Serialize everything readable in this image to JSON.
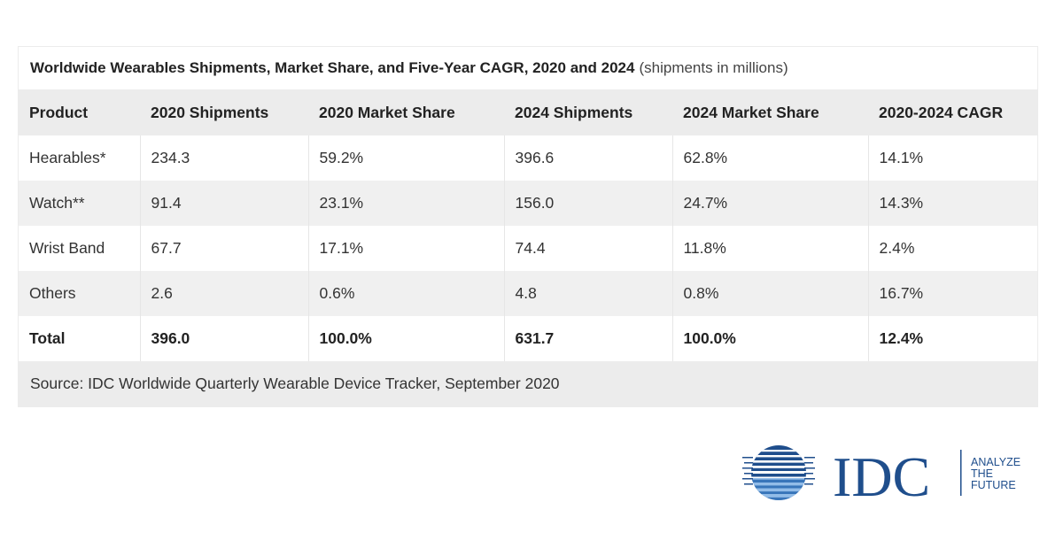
{
  "title": {
    "bold": "Worldwide Wearables Shipments, Market Share, and Five-Year CAGR, 2020 and 2024",
    "sub": "(shipments in millions)"
  },
  "columns": [
    "Product",
    "2020 Shipments",
    "2020 Market Share",
    "2024 Shipments",
    "2024 Market Share",
    "2020-2024 CAGR"
  ],
  "rows": [
    [
      "Hearables*",
      "234.3",
      "59.2%",
      "396.6",
      "62.8%",
      "14.1%"
    ],
    [
      "Watch**",
      "91.4",
      "23.1%",
      "156.0",
      "24.7%",
      "14.3%"
    ],
    [
      "Wrist Band",
      "67.7",
      "17.1%",
      "74.4",
      "11.8%",
      "2.4%"
    ],
    [
      "Others",
      "2.6",
      "0.6%",
      "4.8",
      "0.8%",
      "16.7%"
    ]
  ],
  "total": [
    "Total",
    "396.0",
    "100.0%",
    "631.7",
    "100.0%",
    "12.4%"
  ],
  "source": "Source: IDC Worldwide Quarterly Wearable Device Tracker, September 2020",
  "logo": {
    "wordmark": "IDC",
    "tagline": [
      "ANALYZE",
      "THE",
      "FUTURE"
    ],
    "brand_color": "#1f4e8c",
    "accent_color": "#4a90d9"
  },
  "chart_data": {
    "type": "table",
    "title": "Worldwide Wearables Shipments, Market Share, and Five-Year CAGR, 2020 and 2024 (shipments in millions)",
    "columns": [
      "Product",
      "2020 Shipments",
      "2020 Market Share",
      "2024 Shipments",
      "2024 Market Share",
      "2020-2024 CAGR"
    ],
    "rows": [
      [
        "Hearables*",
        234.3,
        "59.2%",
        396.6,
        "62.8%",
        "14.1%"
      ],
      [
        "Watch**",
        91.4,
        "23.1%",
        156.0,
        "24.7%",
        "14.3%"
      ],
      [
        "Wrist Band",
        67.7,
        "17.1%",
        74.4,
        "11.8%",
        "2.4%"
      ],
      [
        "Others",
        2.6,
        "0.6%",
        4.8,
        "0.8%",
        "16.7%"
      ],
      [
        "Total",
        396.0,
        "100.0%",
        631.7,
        "100.0%",
        "12.4%"
      ]
    ]
  }
}
